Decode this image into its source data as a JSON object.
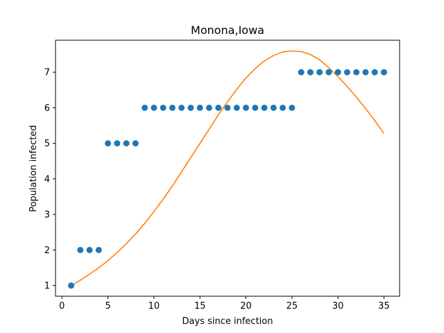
{
  "chart_data": {
    "type": "scatter",
    "title": "Monona,Iowa",
    "xlabel": "Days since infection",
    "ylabel": "Population infected",
    "xlim": [
      -0.7,
      36.7
    ],
    "ylim": [
      0.7,
      7.9
    ],
    "xticks": [
      0,
      5,
      10,
      15,
      20,
      25,
      30,
      35
    ],
    "yticks": [
      1,
      2,
      3,
      4,
      5,
      6,
      7
    ],
    "grid": false,
    "series": [
      {
        "kind": "scatter",
        "color": "#1f77b4",
        "x": [
          1,
          2,
          3,
          4,
          5,
          6,
          7,
          8,
          9,
          10,
          11,
          12,
          13,
          14,
          15,
          16,
          17,
          18,
          19,
          20,
          21,
          22,
          23,
          24,
          25,
          26,
          27,
          28,
          29,
          30,
          31,
          32,
          33,
          34,
          35
        ],
        "y": [
          1,
          2,
          2,
          2,
          5,
          5,
          5,
          5,
          6,
          6,
          6,
          6,
          6,
          6,
          6,
          6,
          6,
          6,
          6,
          6,
          6,
          6,
          6,
          6,
          6,
          7,
          7,
          7,
          7,
          7,
          7,
          7,
          7,
          7,
          7
        ]
      },
      {
        "kind": "line",
        "color": "#ff7f0e",
        "x": [
          1,
          2,
          3,
          4,
          5,
          6,
          7,
          8,
          9,
          10,
          11,
          12,
          13,
          14,
          15,
          16,
          17,
          18,
          19,
          20,
          21,
          22,
          23,
          24,
          25,
          26,
          27,
          28,
          29,
          30,
          31,
          32,
          33,
          34,
          35
        ],
        "y": [
          1.0,
          1.15,
          1.32,
          1.5,
          1.7,
          1.93,
          2.18,
          2.45,
          2.75,
          3.08,
          3.43,
          3.8,
          4.2,
          4.6,
          5.0,
          5.4,
          5.8,
          6.17,
          6.52,
          6.84,
          7.1,
          7.32,
          7.47,
          7.57,
          7.6,
          7.58,
          7.5,
          7.35,
          7.13,
          6.88,
          6.6,
          6.3,
          5.98,
          5.64,
          5.28
        ]
      }
    ]
  }
}
